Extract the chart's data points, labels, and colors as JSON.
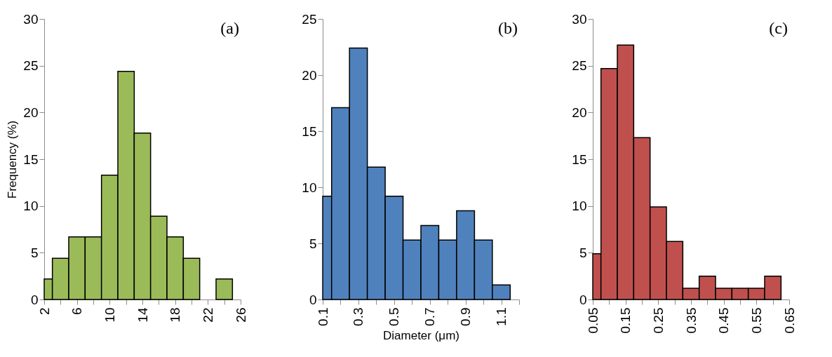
{
  "chart_data": [
    {
      "type": "histogram",
      "ylabel": "Frequency (%)",
      "annotations": [
        "(a)"
      ],
      "color": "#9bbb59",
      "bins": [
        2,
        3,
        5,
        7,
        9,
        11,
        13,
        15,
        17,
        19,
        21,
        23,
        25
      ],
      "values": [
        2.2,
        4.4,
        6.7,
        6.7,
        13.3,
        24.4,
        17.8,
        8.9,
        6.7,
        4.4,
        0,
        2.2
      ],
      "xlim": [
        2,
        26
      ],
      "xticks": [
        2,
        {
          "value": 4,
          "label": null
        },
        6,
        {
          "value": 8,
          "label": null
        },
        10,
        {
          "value": 12,
          "label": null
        },
        14,
        {
          "value": 16,
          "label": null
        },
        18,
        {
          "value": 20,
          "label": null
        },
        22,
        {
          "value": 24,
          "label": null
        },
        26
      ],
      "ylim": [
        0,
        30
      ],
      "yticks": [
        0,
        5,
        10,
        15,
        20,
        25,
        30
      ]
    },
    {
      "type": "histogram",
      "xlabel": "Diameter (μm)",
      "annotations": [
        "(b)"
      ],
      "color": "#4f81bd",
      "bins": [
        0.1,
        0.15,
        0.25,
        0.35,
        0.45,
        0.55,
        0.65,
        0.75,
        0.85,
        0.95,
        1.05,
        1.15
      ],
      "values": [
        9.2,
        17.1,
        22.4,
        11.8,
        9.2,
        5.3,
        6.6,
        5.3,
        7.9,
        5.3,
        1.3
      ],
      "xlim": [
        0.1,
        1.2
      ],
      "xticks": [
        0.1,
        {
          "value": 0.2,
          "label": null
        },
        0.3,
        {
          "value": 0.4,
          "label": null
        },
        0.5,
        {
          "value": 0.6,
          "label": null
        },
        0.7,
        {
          "value": 0.8,
          "label": null
        },
        0.9,
        {
          "value": 1.0,
          "label": null
        },
        1.1,
        {
          "value": 1.2,
          "label": null
        }
      ],
      "ylim": [
        0,
        25
      ],
      "yticks": [
        0,
        5,
        10,
        15,
        20,
        25
      ]
    },
    {
      "type": "histogram",
      "annotations": [
        "(c)"
      ],
      "color": "#c0504d",
      "bins": [
        0.05,
        0.075,
        0.125,
        0.175,
        0.225,
        0.275,
        0.325,
        0.375,
        0.425,
        0.475,
        0.525,
        0.575,
        0.625
      ],
      "values": [
        4.9,
        24.7,
        27.2,
        17.3,
        9.9,
        6.2,
        1.2,
        2.5,
        1.2,
        1.2,
        1.2,
        2.5
      ],
      "xlim": [
        0.05,
        0.65
      ],
      "xticks": [
        0.05,
        {
          "value": 0.1,
          "label": null
        },
        0.15,
        {
          "value": 0.2,
          "label": null
        },
        0.25,
        {
          "value": 0.3,
          "label": null
        },
        0.35,
        {
          "value": 0.4,
          "label": null
        },
        0.45,
        {
          "value": 0.5,
          "label": null
        },
        0.55,
        {
          "value": 0.6,
          "label": null
        },
        0.65
      ],
      "ylim": [
        0,
        30
      ],
      "yticks": [
        0,
        5,
        10,
        15,
        20,
        25,
        30
      ]
    }
  ]
}
